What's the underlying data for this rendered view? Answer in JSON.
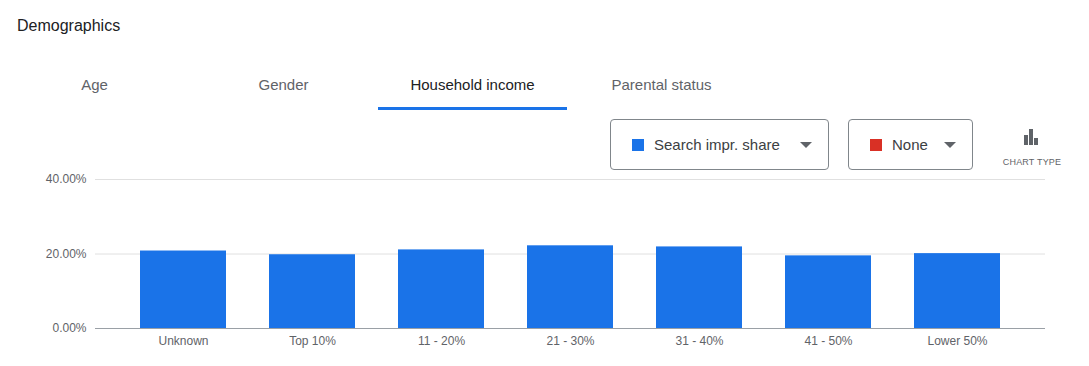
{
  "header": {
    "title": "Demographics",
    "tabs": [
      "Age",
      "Gender",
      "Household income",
      "Parental status"
    ],
    "active_tab": "Household income",
    "dropdowns": [
      {
        "label": "Search impr. share",
        "color": "#1a73e8"
      },
      {
        "label": "None",
        "color": "#d93025"
      }
    ],
    "chart_type_button": "CHART TYPE"
  },
  "chart_data": {
    "type": "bar",
    "categories": [
      "Unknown",
      "Top 10%",
      "11 - 20%",
      "21 - 30%",
      "31 - 40%",
      "41 - 50%",
      "Lower 50%"
    ],
    "values": [
      20.8,
      19.8,
      21.1,
      22.2,
      21.9,
      19.5,
      20.1
    ],
    "color": "#1a73e8",
    "ylim": [
      0,
      40
    ],
    "yticks": [
      {
        "value": 0,
        "label": "0.00%"
      },
      {
        "value": 20,
        "label": "20.00%"
      },
      {
        "value": 40,
        "label": "40.00%"
      }
    ],
    "grid": true
  }
}
